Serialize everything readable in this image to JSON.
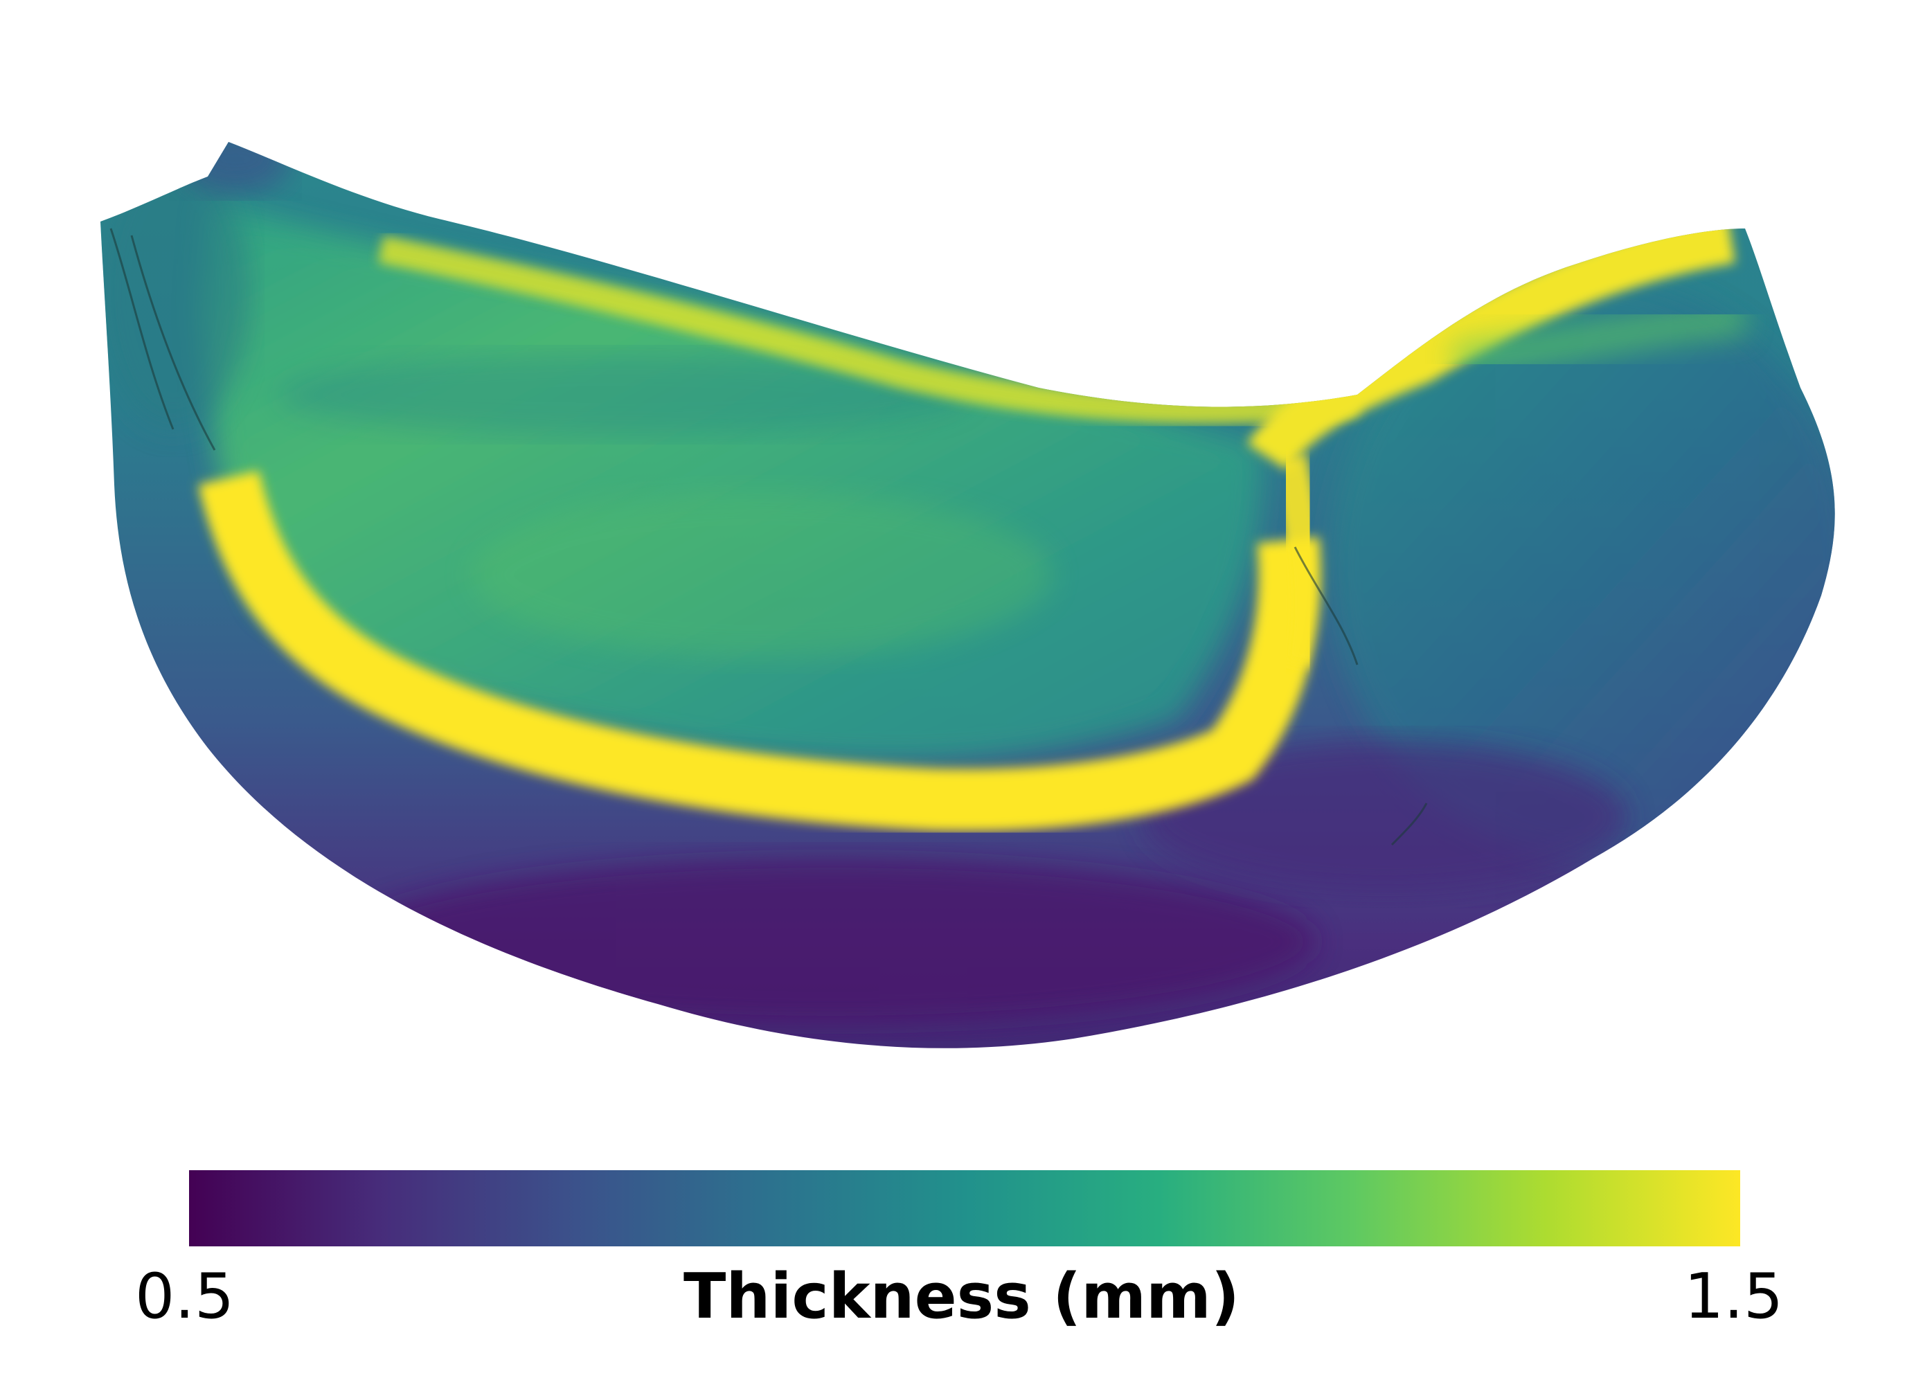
{
  "colorbar": {
    "title": "Thickness (mm)",
    "min_label": "0.5",
    "max_label": "1.5",
    "min": 0.5,
    "max": 1.5,
    "colormap": "viridis",
    "stops": [
      "#440154",
      "#472d7b",
      "#3b528b",
      "#2c728e",
      "#21918c",
      "#28ae80",
      "#5ec962",
      "#addc30",
      "#fde725"
    ]
  }
}
